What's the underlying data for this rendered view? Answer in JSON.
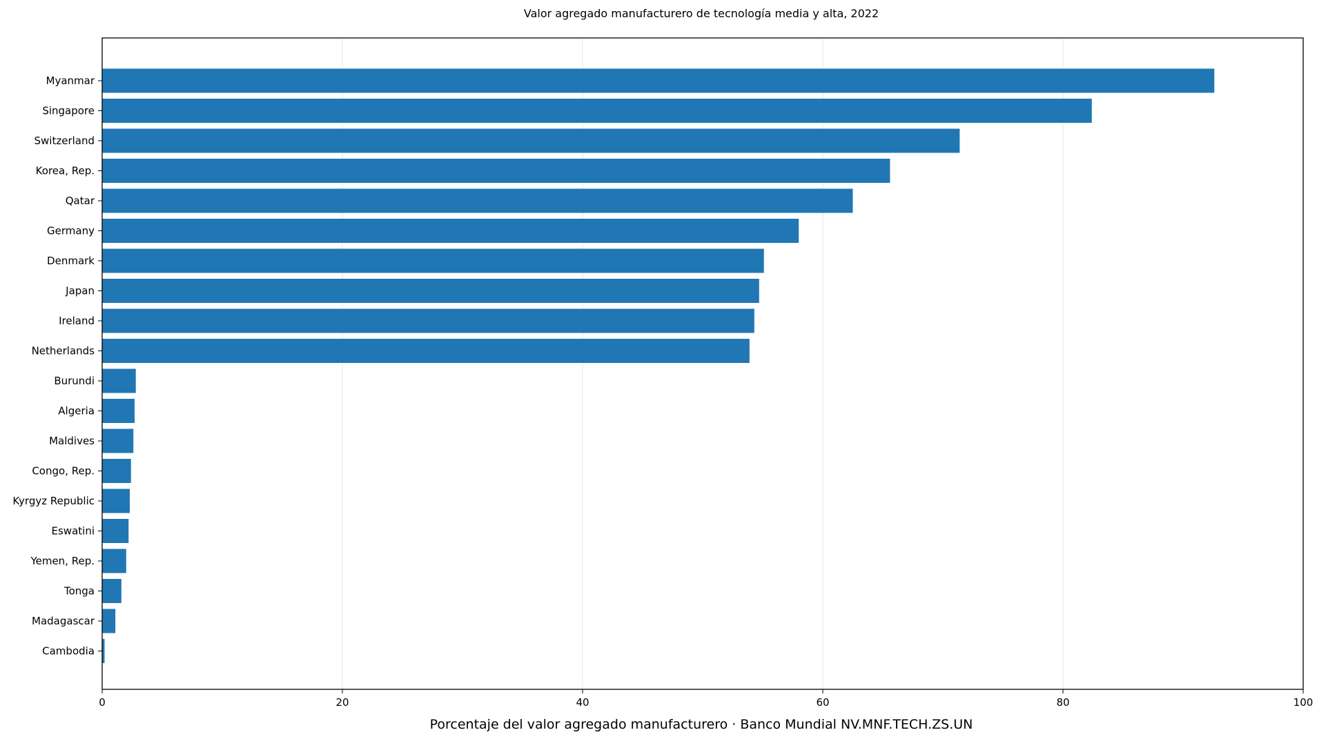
{
  "chart_data": {
    "type": "bar",
    "orientation": "horizontal",
    "title": "Valor agregado manufacturero de tecnología media y alta, 2022",
    "xlabel": "Porcentaje del valor agregado manufacturero · Banco Mundial NV.MNF.TECH.ZS.UN",
    "ylabel": "",
    "xlim": [
      0,
      100
    ],
    "xticks": [
      0,
      20,
      40,
      60,
      80,
      100
    ],
    "grid": "vertical",
    "bar_color": "#2077b4",
    "categories": [
      "Myanmar",
      "Singapore",
      "Switzerland",
      "Korea, Rep.",
      "Qatar",
      "Germany",
      "Denmark",
      "Japan",
      "Ireland",
      "Netherlands",
      "Burundi",
      "Algeria",
      "Maldives",
      "Congo, Rep.",
      "Kyrgyz Republic",
      "Eswatini",
      "Yemen, Rep.",
      "Tonga",
      "Madagascar",
      "Cambodia"
    ],
    "values": [
      92.6,
      82.4,
      71.4,
      65.6,
      62.5,
      58.0,
      55.1,
      54.7,
      54.3,
      53.9,
      2.8,
      2.7,
      2.6,
      2.4,
      2.3,
      2.2,
      2.0,
      1.6,
      1.1,
      0.2
    ]
  }
}
